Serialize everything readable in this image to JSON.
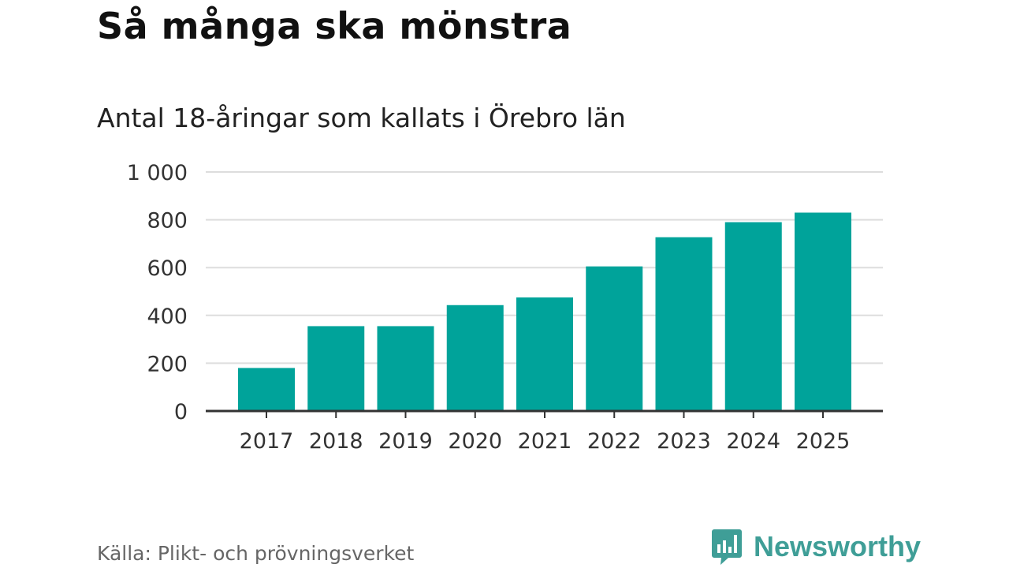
{
  "header": {
    "title": "Så många ska mönstra",
    "subtitle": "Antal 18-åringar som kallats i Örebro län"
  },
  "footer": {
    "source": "Källa: Plikt- och prövningsverket",
    "brand": "Newsworthy",
    "brand_icon": "bar-chart-speech-bubble-icon"
  },
  "colors": {
    "bar": "#00a39a",
    "grid": "#dddddd",
    "axis": "#333333",
    "brand": "#3f9e97"
  },
  "chart_data": {
    "type": "bar",
    "title": "Så många ska mönstra",
    "subtitle": "Antal 18-åringar som kallats i Örebro län",
    "xlabel": "",
    "ylabel": "",
    "categories": [
      "2017",
      "2018",
      "2019",
      "2020",
      "2021",
      "2022",
      "2023",
      "2024",
      "2025"
    ],
    "values": [
      180,
      355,
      355,
      443,
      475,
      605,
      727,
      790,
      830
    ],
    "ylim": [
      0,
      1000
    ],
    "yticks": [
      0,
      200,
      400,
      600,
      800,
      1000
    ],
    "ytick_labels": [
      "0",
      "200",
      "400",
      "600",
      "800",
      "1 000"
    ],
    "grid": true,
    "legend": "none"
  }
}
